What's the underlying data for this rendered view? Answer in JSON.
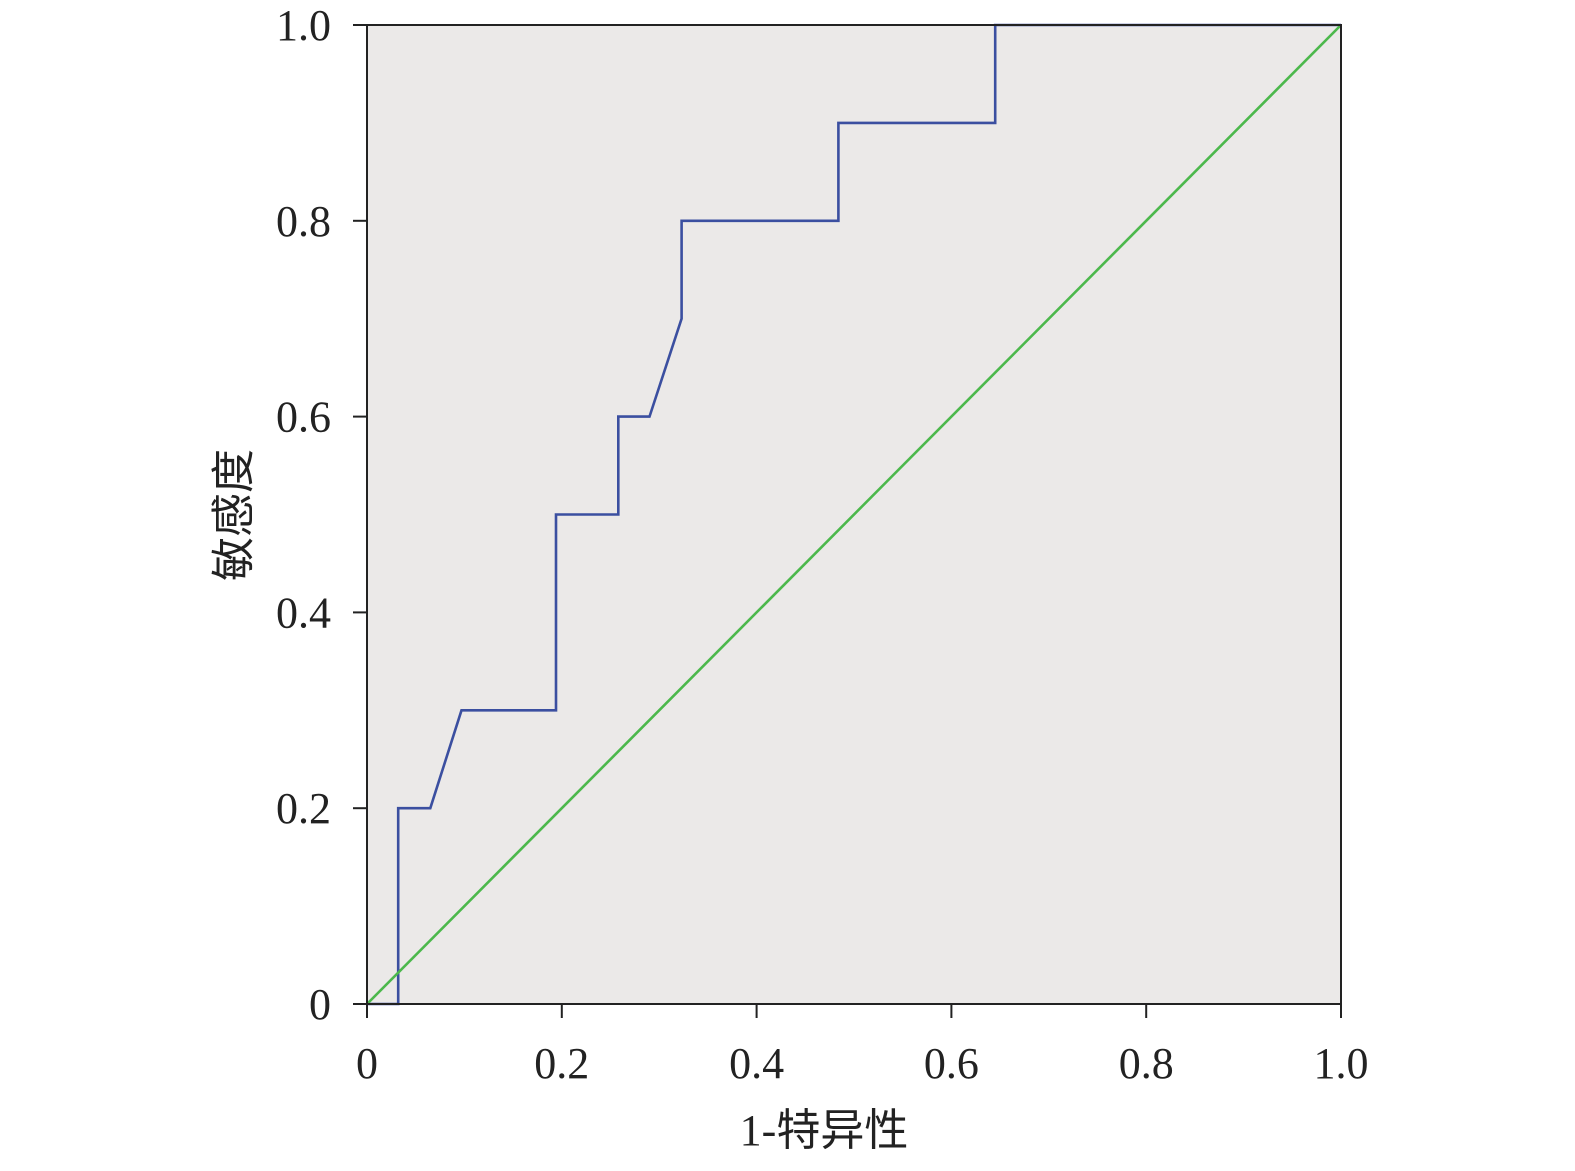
{
  "chart_data": {
    "type": "line",
    "title": "",
    "xlabel": "1-特异性",
    "ylabel": "敏感度",
    "xlim": [
      0,
      1
    ],
    "ylim": [
      0,
      1
    ],
    "x_ticks": [
      0,
      0.2,
      0.4,
      0.6,
      0.8,
      1.0
    ],
    "x_tick_labels": [
      "0",
      "0.2",
      "0.4",
      "0.6",
      "0.8",
      "1.0"
    ],
    "y_ticks": [
      0,
      0.2,
      0.4,
      0.6,
      0.8,
      1.0
    ],
    "y_tick_labels": [
      "0",
      "0.2",
      "0.4",
      "0.6",
      "0.8",
      "1.0"
    ],
    "grid": false,
    "legend": "none",
    "series": [
      {
        "color": "#3b4fa0",
        "x": [
          0,
          0.032,
          0.032,
          0.065,
          0.097,
          0.194,
          0.194,
          0.258,
          0.258,
          0.29,
          0.323,
          0.323,
          0.484,
          0.484,
          0.645,
          0.645,
          1.0
        ],
        "y": [
          0,
          0,
          0.2,
          0.2,
          0.3,
          0.3,
          0.5,
          0.5,
          0.6,
          0.6,
          0.7,
          0.8,
          0.8,
          0.9,
          0.9,
          1.0,
          1.0
        ]
      },
      {
        "color": "#4cb84c",
        "x": [
          0,
          1.0
        ],
        "y": [
          0,
          1.0
        ]
      }
    ],
    "colors": {
      "plot_background": "#ebe9e8",
      "axis": "#222222"
    }
  }
}
